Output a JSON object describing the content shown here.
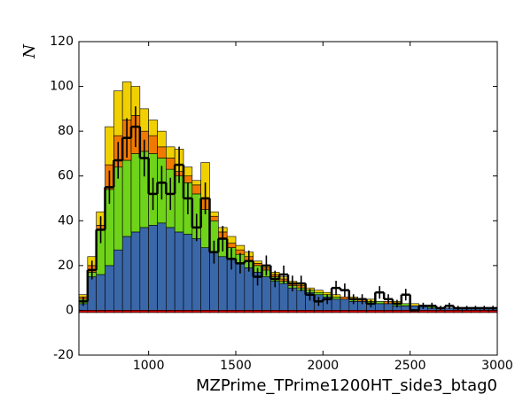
{
  "chart_data": {
    "type": "histogram",
    "x_label": "MZPrime_TPrime1200HT_side3_btag0",
    "y_label": "N",
    "bins": [
      600,
      650,
      700,
      750,
      800,
      850,
      900,
      950,
      1000,
      1050,
      1100,
      1150,
      1200,
      1250,
      1300,
      1350,
      1400,
      1450,
      1500,
      1550,
      1600,
      1650,
      1700,
      1750,
      1800,
      1850,
      1900,
      1950,
      2000,
      2050,
      2100,
      2150,
      2200,
      2250,
      2300,
      2350,
      2400,
      2450,
      2500,
      2550,
      2600,
      2650,
      2700,
      2750,
      2800,
      2850,
      2900,
      2950,
      3000
    ],
    "series": [
      {
        "color": "#3a67a8",
        "values": [
          3,
          15,
          16,
          20,
          27,
          33,
          35,
          37,
          38,
          39,
          37,
          35,
          34,
          32,
          28,
          26,
          24,
          23,
          21,
          19,
          17,
          15,
          13,
          12,
          10,
          9,
          8,
          7,
          6,
          5,
          5,
          4,
          4,
          3,
          3,
          3,
          2,
          2,
          2,
          2,
          1,
          1,
          1,
          1,
          1,
          1,
          1,
          1
        ]
      },
      {
        "color": "#6fd31a",
        "values": [
          2,
          2,
          20,
          34,
          37,
          34,
          35,
          34,
          32,
          29,
          26,
          25,
          23,
          20,
          17,
          14,
          8,
          5,
          4,
          3,
          3,
          3,
          2,
          1,
          1,
          1,
          1,
          1,
          1,
          1,
          0,
          1,
          0,
          1,
          1,
          0,
          1,
          1,
          0,
          0,
          1,
          0,
          0,
          0,
          0,
          0,
          0,
          0
        ]
      },
      {
        "color": "#f07a00",
        "values": [
          1,
          3,
          2,
          11,
          14,
          18,
          17,
          9,
          8,
          5,
          5,
          2,
          3,
          4,
          5,
          2,
          3,
          2,
          2,
          2,
          1,
          1,
          1,
          1,
          1,
          1,
          0,
          0,
          0,
          0,
          1,
          0,
          1,
          0,
          0,
          1,
          0,
          0,
          0,
          0,
          0,
          0,
          0,
          0,
          0,
          0,
          0,
          0
        ]
      },
      {
        "color": "#f0d000",
        "values": [
          1,
          4,
          6,
          17,
          20,
          17,
          13,
          10,
          7,
          7,
          5,
          10,
          4,
          2,
          16,
          2,
          2,
          3,
          2,
          2,
          1,
          1,
          1,
          1,
          1,
          1,
          1,
          1,
          1,
          1,
          0,
          1,
          0,
          1,
          0,
          0,
          1,
          0,
          1,
          0,
          0,
          0,
          0,
          0,
          0,
          0,
          0,
          0
        ]
      },
      {
        "color": "#cc0000",
        "values": [
          -1,
          -1,
          -1,
          -1,
          -1,
          -1,
          -1,
          -1,
          -1,
          -1,
          -1,
          -1,
          -1,
          -1,
          -1,
          -1,
          -1,
          -1,
          -1,
          -1,
          -1,
          -1,
          -1,
          -1,
          -1,
          -1,
          -1,
          -1,
          -1,
          -1,
          -1,
          -1,
          -1,
          -1,
          -1,
          -1,
          -1,
          -1,
          -1,
          -1,
          -1,
          -1,
          -1,
          -1,
          -1,
          -1,
          -1,
          -1
        ]
      }
    ],
    "data": {
      "color": "#000000",
      "values": [
        4,
        18,
        36,
        55,
        67,
        77,
        82,
        68,
        52,
        57,
        52,
        65,
        50,
        37,
        50,
        26,
        32,
        23,
        21,
        22,
        15,
        20,
        14,
        16,
        12,
        12,
        7,
        4,
        5,
        10,
        9,
        5,
        5,
        3,
        8,
        5,
        3,
        7,
        0,
        2,
        2,
        1,
        2,
        1,
        1,
        1,
        1,
        1
      ],
      "errors": [
        2,
        4.2,
        6,
        7.4,
        8.2,
        8.8,
        9.1,
        8.2,
        7.2,
        7.5,
        7.2,
        8.1,
        7.1,
        6.1,
        7.1,
        5.1,
        5.7,
        4.8,
        4.6,
        4.7,
        3.9,
        4.5,
        3.7,
        4,
        3.5,
        3.5,
        2.6,
        2,
        2.2,
        3.2,
        3,
        2.2,
        2.2,
        1.7,
        2.8,
        2.2,
        1.7,
        2.6,
        0,
        1.4,
        1.4,
        1,
        1.4,
        1,
        1,
        1,
        1,
        1
      ]
    },
    "xlim": [
      600,
      3000
    ],
    "ylim": [
      -20,
      120
    ],
    "xticks": [
      1000,
      1500,
      2000,
      2500,
      3000
    ],
    "yticks": [
      -20,
      0,
      20,
      40,
      60,
      80,
      100,
      120
    ]
  }
}
